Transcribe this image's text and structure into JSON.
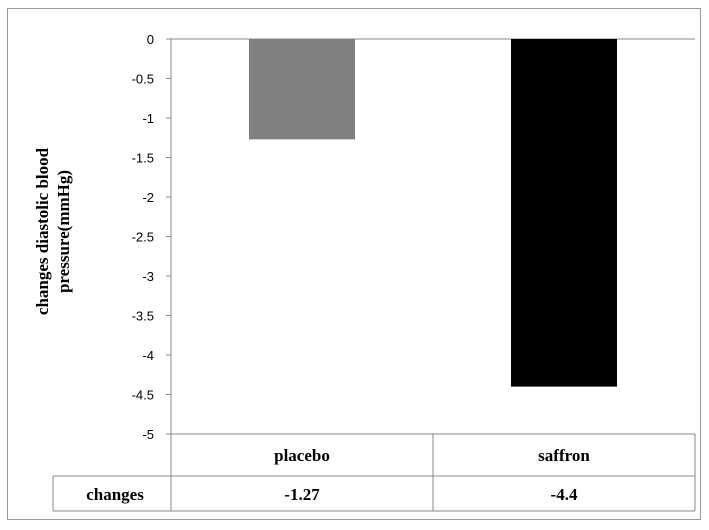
{
  "chart_data": {
    "type": "bar",
    "title": "",
    "xlabel": "",
    "ylabel": "changes diastolic blood pressure(mmHg)",
    "ylabel_lines": [
      "changes diastolic blood",
      "pressure(mmHg)"
    ],
    "categories": [
      "placebo",
      "saffron"
    ],
    "series": [
      {
        "name": "changes",
        "values": [
          -1.27,
          -4.4
        ],
        "value_labels": [
          "-1.27",
          "-4.4"
        ],
        "colors": [
          "#808080",
          "#000000"
        ]
      }
    ],
    "ylim": [
      -5,
      0
    ],
    "yticks": [
      0,
      -0.5,
      -1,
      -1.5,
      -2,
      -2.5,
      -3,
      -3.5,
      -4,
      -4.5,
      -5
    ],
    "ytick_labels": [
      "0",
      "-0.5",
      "-1",
      "-1.5",
      "-2",
      "-2.5",
      "-3",
      "-3.5",
      "-4",
      "-4.5",
      "-5"
    ],
    "grid": false,
    "legend": "none",
    "data_table": true
  }
}
